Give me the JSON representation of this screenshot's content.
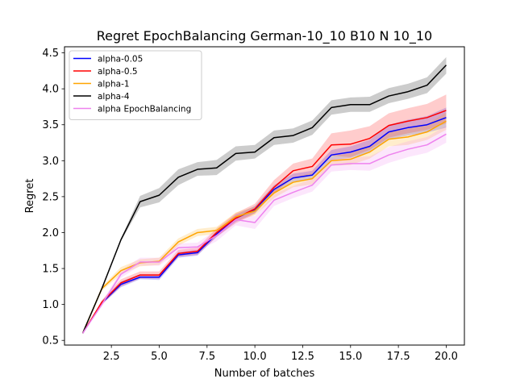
{
  "chart_data": {
    "type": "line",
    "title": "Regret EpochBalancing German-10_10 B10 N 10_10",
    "xlabel": "Number of batches",
    "ylabel": "Regret",
    "xlim": [
      0.05,
      20.95
    ],
    "ylim": [
      0.435,
      4.585
    ],
    "xticks": [
      2.5,
      5.0,
      7.5,
      10.0,
      12.5,
      15.0,
      17.5,
      20.0
    ],
    "xtick_labels": [
      "2.5",
      "5.0",
      "7.5",
      "10.0",
      "12.5",
      "15.0",
      "17.5",
      "20.0"
    ],
    "yticks": [
      0.5,
      1.0,
      1.5,
      2.0,
      2.5,
      3.0,
      3.5,
      4.0,
      4.5
    ],
    "ytick_labels": [
      "0.5",
      "1.0",
      "1.5",
      "2.0",
      "2.5",
      "3.0",
      "3.5",
      "4.0",
      "4.5"
    ],
    "grid": false,
    "legend_position": "top-left",
    "x": [
      1,
      2,
      3,
      4,
      5,
      6,
      7,
      8,
      9,
      10,
      11,
      12,
      13,
      14,
      15,
      16,
      17,
      18,
      19,
      20
    ],
    "series": [
      {
        "name": "alpha-0.05",
        "color": "#0000ff",
        "values": [
          0.6,
          1.02,
          1.28,
          1.38,
          1.38,
          1.69,
          1.72,
          1.98,
          2.2,
          2.32,
          2.6,
          2.76,
          2.8,
          3.08,
          3.12,
          3.2,
          3.4,
          3.46,
          3.5,
          3.6
        ],
        "lower": [
          0.6,
          1.0,
          1.24,
          1.35,
          1.34,
          1.65,
          1.68,
          1.94,
          2.15,
          2.27,
          2.55,
          2.71,
          2.74,
          3.01,
          3.04,
          3.11,
          3.3,
          3.35,
          3.39,
          3.46
        ],
        "upper": [
          0.6,
          1.05,
          1.32,
          1.42,
          1.42,
          1.73,
          1.76,
          2.02,
          2.25,
          2.37,
          2.66,
          2.82,
          2.86,
          3.15,
          3.2,
          3.29,
          3.5,
          3.57,
          3.62,
          3.74
        ]
      },
      {
        "name": "alpha-0.5",
        "color": "#ff0000",
        "values": [
          0.6,
          1.03,
          1.3,
          1.41,
          1.41,
          1.71,
          1.74,
          2.0,
          2.2,
          2.33,
          2.63,
          2.86,
          2.92,
          3.22,
          3.23,
          3.31,
          3.49,
          3.55,
          3.6,
          3.7
        ],
        "lower": [
          0.6,
          1.0,
          1.25,
          1.36,
          1.36,
          1.66,
          1.69,
          1.94,
          2.13,
          2.26,
          2.55,
          2.76,
          2.81,
          3.07,
          3.05,
          3.15,
          3.32,
          3.38,
          3.43,
          3.52
        ],
        "upper": [
          0.6,
          1.06,
          1.35,
          1.46,
          1.46,
          1.76,
          1.79,
          2.06,
          2.27,
          2.4,
          2.73,
          2.96,
          3.03,
          3.38,
          3.42,
          3.48,
          3.66,
          3.73,
          3.79,
          3.92
        ]
      },
      {
        "name": "alpha-1",
        "color": "#ffa500",
        "values": [
          0.6,
          1.22,
          1.47,
          1.58,
          1.6,
          1.87,
          2.0,
          2.03,
          2.22,
          2.3,
          2.55,
          2.7,
          2.75,
          3.0,
          3.02,
          3.12,
          3.3,
          3.33,
          3.4,
          3.55
        ],
        "lower": [
          0.6,
          1.19,
          1.42,
          1.53,
          1.55,
          1.82,
          1.95,
          1.98,
          2.16,
          2.24,
          2.48,
          2.63,
          2.67,
          2.93,
          2.94,
          3.03,
          3.2,
          3.22,
          3.29,
          3.43
        ],
        "upper": [
          0.6,
          1.25,
          1.52,
          1.63,
          1.65,
          1.92,
          2.05,
          2.08,
          2.28,
          2.36,
          2.62,
          2.77,
          2.83,
          3.07,
          3.1,
          3.21,
          3.4,
          3.44,
          3.51,
          3.67
        ]
      },
      {
        "name": "alpha-4",
        "color": "#000000",
        "values": [
          0.6,
          1.22,
          1.9,
          2.43,
          2.52,
          2.77,
          2.88,
          2.9,
          3.1,
          3.12,
          3.32,
          3.35,
          3.46,
          3.74,
          3.78,
          3.78,
          3.9,
          3.96,
          4.05,
          4.33
        ],
        "lower": [
          0.6,
          1.2,
          1.88,
          2.35,
          2.42,
          2.66,
          2.79,
          2.8,
          3.0,
          3.03,
          3.22,
          3.25,
          3.36,
          3.64,
          3.68,
          3.68,
          3.8,
          3.86,
          3.94,
          4.21
        ],
        "upper": [
          0.6,
          1.24,
          1.92,
          2.51,
          2.62,
          2.88,
          2.98,
          3.01,
          3.2,
          3.22,
          3.42,
          3.45,
          3.56,
          3.84,
          3.88,
          3.89,
          4.01,
          4.07,
          4.16,
          4.44
        ]
      },
      {
        "name": "alpha EpochBalancing",
        "color": "#ee82ee",
        "values": [
          0.6,
          1.0,
          1.42,
          1.59,
          1.59,
          1.79,
          1.8,
          1.96,
          2.18,
          2.14,
          2.45,
          2.56,
          2.66,
          2.94,
          2.96,
          2.96,
          3.08,
          3.16,
          3.22,
          3.37
        ],
        "lower": [
          0.6,
          0.97,
          1.37,
          1.54,
          1.54,
          1.73,
          1.74,
          1.88,
          2.1,
          2.05,
          2.37,
          2.48,
          2.57,
          2.85,
          2.87,
          2.86,
          2.97,
          3.05,
          3.11,
          3.25
        ],
        "upper": [
          0.6,
          1.03,
          1.47,
          1.65,
          1.65,
          1.85,
          1.86,
          2.04,
          2.26,
          2.23,
          2.54,
          2.65,
          2.75,
          3.03,
          3.05,
          3.06,
          3.19,
          3.27,
          3.33,
          3.49
        ]
      }
    ]
  }
}
